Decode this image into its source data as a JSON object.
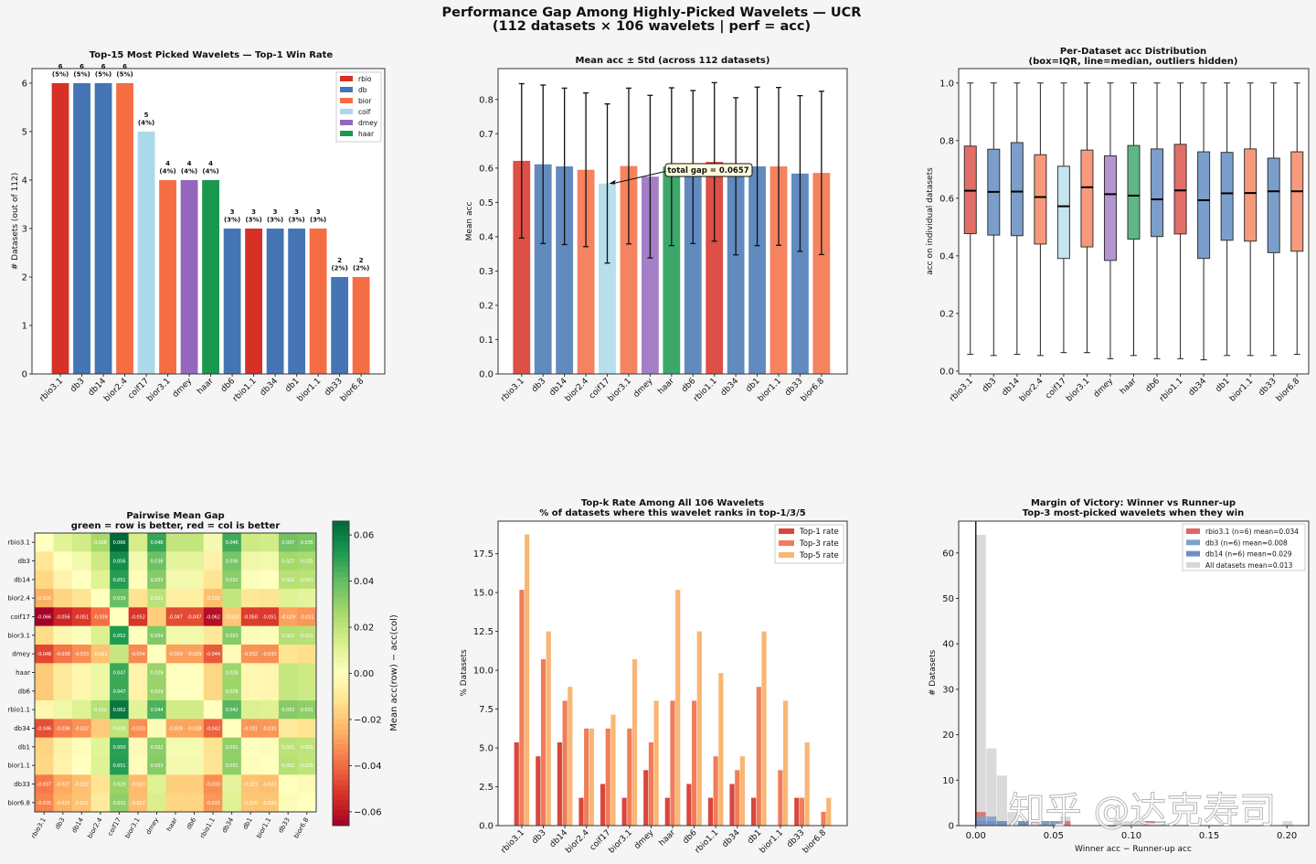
{
  "figure": {
    "title_line1": "Performance Gap Among Highly-Picked Wavelets — UCR",
    "title_line2": "(112 datasets × 106 wavelets  |  perf = acc)",
    "watermark": "知乎 @达克寿司"
  },
  "family_colors": {
    "rbio": "#d73027",
    "db": "#4575b4",
    "bior": "#f46d43",
    "coif": "#abd9e9",
    "dmey": "#9467bd",
    "haar": "#1a9850"
  },
  "wavelets": [
    "rbio3.1",
    "db3",
    "db14",
    "bior2.4",
    "coif17",
    "bior3.1",
    "dmey",
    "haar",
    "db6",
    "rbio1.1",
    "db34",
    "db1",
    "bior1.1",
    "db33",
    "bior6.8"
  ],
  "families": [
    "rbio",
    "db",
    "db",
    "bior",
    "coif",
    "bior",
    "dmey",
    "haar",
    "db",
    "rbio",
    "db",
    "db",
    "bior",
    "db",
    "bior"
  ],
  "chart_data": [
    {
      "type": "bar",
      "title": "Top-15 Most Picked Wavelets — Top-1 Win Rate",
      "ylabel": "# Datasets (out of 112)",
      "ylim": [
        0,
        6.3
      ],
      "yticks": [
        0,
        1,
        2,
        3,
        4,
        5,
        6
      ],
      "values": [
        6,
        6,
        6,
        6,
        5,
        4,
        4,
        4,
        3,
        3,
        3,
        3,
        3,
        2,
        2
      ],
      "value_labels": [
        "6",
        "6",
        "6",
        "6",
        "5",
        "4",
        "4",
        "4",
        "3",
        "3",
        "3",
        "3",
        "3",
        "2",
        "2"
      ],
      "pct_labels": [
        "(5%)",
        "(5%)",
        "(5%)",
        "(5%)",
        "(4%)",
        "(4%)",
        "(4%)",
        "(4%)",
        "(3%)",
        "(3%)",
        "(3%)",
        "(3%)",
        "(3%)",
        "(2%)",
        "(2%)"
      ],
      "legend": [
        "rbio",
        "db",
        "bior",
        "coif",
        "dmey",
        "haar"
      ],
      "legend_placement": "top-right"
    },
    {
      "type": "bar",
      "title": "Mean acc ± Std  (across 112 datasets)",
      "ylabel": "Mean acc",
      "ylim": [
        0,
        0.89
      ],
      "yticks": [
        0,
        0.1,
        0.2,
        0.3,
        0.4,
        0.5,
        0.6,
        0.7,
        0.8
      ],
      "mean": [
        0.621,
        0.611,
        0.605,
        0.595,
        0.555,
        0.606,
        0.575,
        0.604,
        0.603,
        0.618,
        0.576,
        0.605,
        0.605,
        0.584,
        0.586
      ],
      "std": [
        0.225,
        0.231,
        0.228,
        0.224,
        0.232,
        0.227,
        0.237,
        0.23,
        0.223,
        0.231,
        0.229,
        0.231,
        0.23,
        0.227,
        0.238
      ],
      "annotation": "total gap = 0.0657"
    },
    {
      "type": "box",
      "title_line1": "Per-Dataset acc Distribution",
      "title_line2": "(box=IQR, line=median, outliers hidden)",
      "ylabel": "acc on individual datasets",
      "ylim": [
        -0.01,
        1.05
      ],
      "yticks": [
        0,
        0.2,
        0.4,
        0.6,
        0.8,
        1.0
      ],
      "whisker_low": [
        0.058,
        0.054,
        0.058,
        0.054,
        0.064,
        0.064,
        0.043,
        0.054,
        0.043,
        0.043,
        0.039,
        0.054,
        0.054,
        0.054,
        0.058
      ],
      "q1": [
        0.477,
        0.472,
        0.47,
        0.441,
        0.391,
        0.431,
        0.384,
        0.458,
        0.467,
        0.476,
        0.391,
        0.454,
        0.451,
        0.411,
        0.416
      ],
      "median": [
        0.626,
        0.622,
        0.623,
        0.604,
        0.572,
        0.638,
        0.614,
        0.609,
        0.596,
        0.627,
        0.593,
        0.617,
        0.618,
        0.624,
        0.624
      ],
      "q3": [
        0.781,
        0.77,
        0.793,
        0.751,
        0.711,
        0.767,
        0.747,
        0.783,
        0.771,
        0.787,
        0.761,
        0.759,
        0.771,
        0.739,
        0.761
      ],
      "whisker_high": [
        1,
        1,
        1,
        1,
        1,
        1,
        1,
        1,
        1,
        1,
        1,
        1,
        1,
        1,
        1
      ]
    },
    {
      "type": "heatmap",
      "title_line1": "Pairwise Mean Gap",
      "title_line2": "green = row is better, red = col is better",
      "colorbar_label": "Mean acc(row) − acc(col)",
      "colorbar_range": [
        -0.066,
        0.066
      ],
      "colorbar_ticks": [
        -0.06,
        -0.04,
        -0.02,
        0.0,
        0.02,
        0.04,
        0.06
      ],
      "colormap": "RdYlGn",
      "values": [
        [
          0,
          0.01,
          0.015,
          0.026,
          0.066,
          0.014,
          0.048,
          0.019,
          0.019,
          0.004,
          0.046,
          0.016,
          0.015,
          0.037,
          0.035
        ],
        [
          -0.01,
          0,
          0.005,
          0.016,
          0.056,
          0.004,
          0.038,
          0.009,
          0.009,
          -0.006,
          0.036,
          0.006,
          0.005,
          0.027,
          0.025
        ],
        [
          -0.015,
          -0.005,
          0,
          0.011,
          0.051,
          -0.001,
          0.033,
          0.004,
          0.004,
          -0.011,
          0.032,
          0.001,
          0,
          0.022,
          0.021
        ],
        [
          -0.026,
          -0.016,
          -0.011,
          0,
          0.039,
          -0.012,
          0.021,
          -0.007,
          -0.007,
          -0.022,
          0.019,
          -0.01,
          -0.011,
          0.011,
          0.009
        ],
        [
          -0.066,
          -0.056,
          -0.051,
          -0.039,
          0,
          -0.052,
          -0.018,
          -0.047,
          -0.047,
          -0.062,
          -0.02,
          -0.05,
          -0.051,
          -0.029,
          -0.031
        ],
        [
          -0.014,
          -0.004,
          0.001,
          0.012,
          0.052,
          0,
          0.034,
          0.005,
          0.005,
          -0.01,
          0.033,
          0.002,
          0.001,
          0.023,
          0.022
        ],
        [
          -0.048,
          -0.038,
          -0.033,
          -0.021,
          0.018,
          -0.034,
          0,
          -0.029,
          -0.029,
          -0.044,
          -0.002,
          -0.032,
          -0.033,
          -0.011,
          -0.013
        ],
        [
          -0.019,
          -0.009,
          -0.004,
          0.007,
          0.047,
          -0.005,
          0.029,
          0,
          0,
          -0.015,
          0.028,
          -0.003,
          -0.004,
          0.018,
          0.016
        ],
        [
          -0.019,
          -0.009,
          -0.004,
          0.007,
          0.047,
          -0.005,
          0.029,
          0,
          0,
          -0.015,
          0.028,
          -0.003,
          -0.004,
          0.018,
          0.016
        ],
        [
          -0.004,
          0.006,
          0.011,
          0.022,
          0.062,
          0.01,
          0.044,
          0.015,
          0.015,
          0,
          0.042,
          0.012,
          0.011,
          0.033,
          0.031
        ],
        [
          -0.046,
          -0.036,
          -0.032,
          -0.019,
          0.02,
          -0.033,
          0.002,
          -0.028,
          -0.028,
          -0.042,
          0,
          -0.031,
          -0.031,
          -0.009,
          -0.011
        ],
        [
          -0.016,
          -0.006,
          -0.001,
          0.01,
          0.05,
          -0.002,
          0.032,
          0.003,
          0.003,
          -0.012,
          0.031,
          0,
          -0.001,
          0.021,
          0.02
        ],
        [
          -0.015,
          -0.005,
          0,
          0.011,
          0.051,
          -0.001,
          0.033,
          0.004,
          0.004,
          -0.011,
          0.031,
          0.001,
          0,
          0.022,
          0.02
        ],
        [
          -0.037,
          -0.027,
          -0.022,
          -0.011,
          0.029,
          -0.023,
          0.011,
          -0.018,
          -0.018,
          -0.033,
          0.009,
          -0.021,
          -0.022,
          0,
          -0.002
        ],
        [
          -0.035,
          -0.025,
          -0.021,
          -0.009,
          0.031,
          -0.022,
          0.013,
          -0.016,
          -0.016,
          -0.031,
          0.011,
          -0.02,
          -0.02,
          0.002,
          0
        ]
      ]
    },
    {
      "type": "bar",
      "title_line1": "Top-k Rate Among All 106 Wavelets",
      "title_line2": "% of datasets where this wavelet ranks in top-1/3/5",
      "ylabel": "% Datasets",
      "ylim": [
        0,
        19.6
      ],
      "yticks": [
        0,
        2.5,
        5,
        7.5,
        10,
        12.5,
        15,
        17.5
      ],
      "legend_placement": "top-right",
      "series": [
        {
          "name": "Top-1 rate",
          "color": "#d9473c",
          "values": [
            5.36,
            4.46,
            5.36,
            1.79,
            2.68,
            1.79,
            3.57,
            1.79,
            2.68,
            1.79,
            2.68,
            1.79,
            0,
            1.79,
            0
          ]
        },
        {
          "name": "Top-3 rate",
          "color": "#f07d59",
          "values": [
            15.18,
            10.71,
            8.04,
            6.25,
            6.25,
            6.25,
            5.36,
            8.04,
            8.04,
            4.46,
            3.57,
            8.93,
            3.57,
            1.79,
            0.89
          ]
        },
        {
          "name": "Top-5 rate",
          "color": "#f9b674",
          "values": [
            18.75,
            12.5,
            8.93,
            6.25,
            7.14,
            10.71,
            8.04,
            15.18,
            12.5,
            9.82,
            4.46,
            12.5,
            8.04,
            5.36,
            1.79
          ]
        }
      ]
    },
    {
      "type": "histogram",
      "title_line1": "Margin of Victory: Winner vs Runner-up",
      "title_line2": "Top-3 most-picked wavelets when they win",
      "xlabel": "Winner acc − Runner-up acc",
      "ylabel": "# Datasets",
      "xlim": [
        -0.011,
        0.214
      ],
      "ylim": [
        0,
        67
      ],
      "xticks": [
        0.0,
        0.05,
        0.1,
        0.15,
        0.2
      ],
      "yticks": [
        0,
        10,
        20,
        30,
        40,
        50,
        60
      ],
      "bin_width": 0.0068,
      "legend_placement": "top-right",
      "series": [
        {
          "name": "rbio3.1 (n=6)  mean=0.034",
          "color": "#e06666",
          "counts": [
            3,
            0,
            0,
            0,
            1,
            0,
            0,
            0,
            1,
            0,
            0,
            0,
            0,
            0,
            0,
            0,
            1
          ]
        },
        {
          "name": "db3 (n=6)  mean=0.008",
          "color": "#7f9fcb",
          "counts": [
            2,
            2,
            1,
            0,
            1
          ]
        },
        {
          "name": "db14 (n=6)  mean=0.029",
          "color": "#6f8fc0",
          "counts": [
            1,
            1,
            1,
            0,
            1,
            0,
            1,
            1
          ]
        },
        {
          "name": "All datasets  mean=0.013",
          "color": "#d6d6d6",
          "counts": [
            64,
            17,
            11,
            3,
            1,
            1,
            1,
            1,
            2,
            0,
            0,
            0,
            0,
            1,
            1,
            1,
            1,
            1,
            0,
            0,
            0,
            0,
            0,
            0,
            0,
            0,
            0,
            0,
            0,
            1
          ]
        }
      ]
    }
  ]
}
